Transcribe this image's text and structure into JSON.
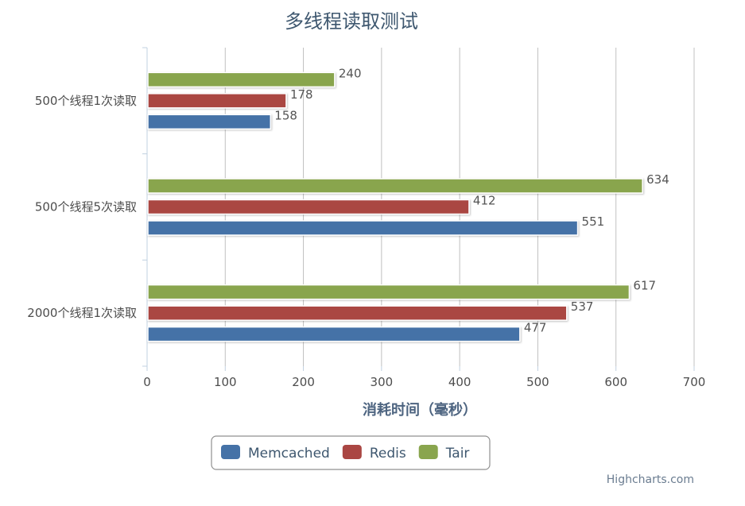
{
  "chart_data": {
    "type": "bar",
    "orientation": "horizontal",
    "title": "多线程读取测试",
    "categories": [
      "500个线程1次读取",
      "500个线程5次读取",
      "2000个线程1次读取"
    ],
    "series": [
      {
        "name": "Memcached",
        "color": "#4572a7",
        "values": [
          158,
          551,
          477
        ]
      },
      {
        "name": "Redis",
        "color": "#aa4643",
        "values": [
          178,
          412,
          537
        ]
      },
      {
        "name": "Tair",
        "color": "#89a54e",
        "values": [
          240,
          634,
          617
        ]
      }
    ],
    "xlabel": "消耗时间（毫秒）",
    "ylabel": "",
    "xlim": [
      0,
      700
    ],
    "ticks": [
      "0",
      "100",
      "200",
      "300",
      "400",
      "500",
      "600",
      "700"
    ],
    "grid": true,
    "legend_position": "bottom-center",
    "credits": "Highcharts.com"
  }
}
